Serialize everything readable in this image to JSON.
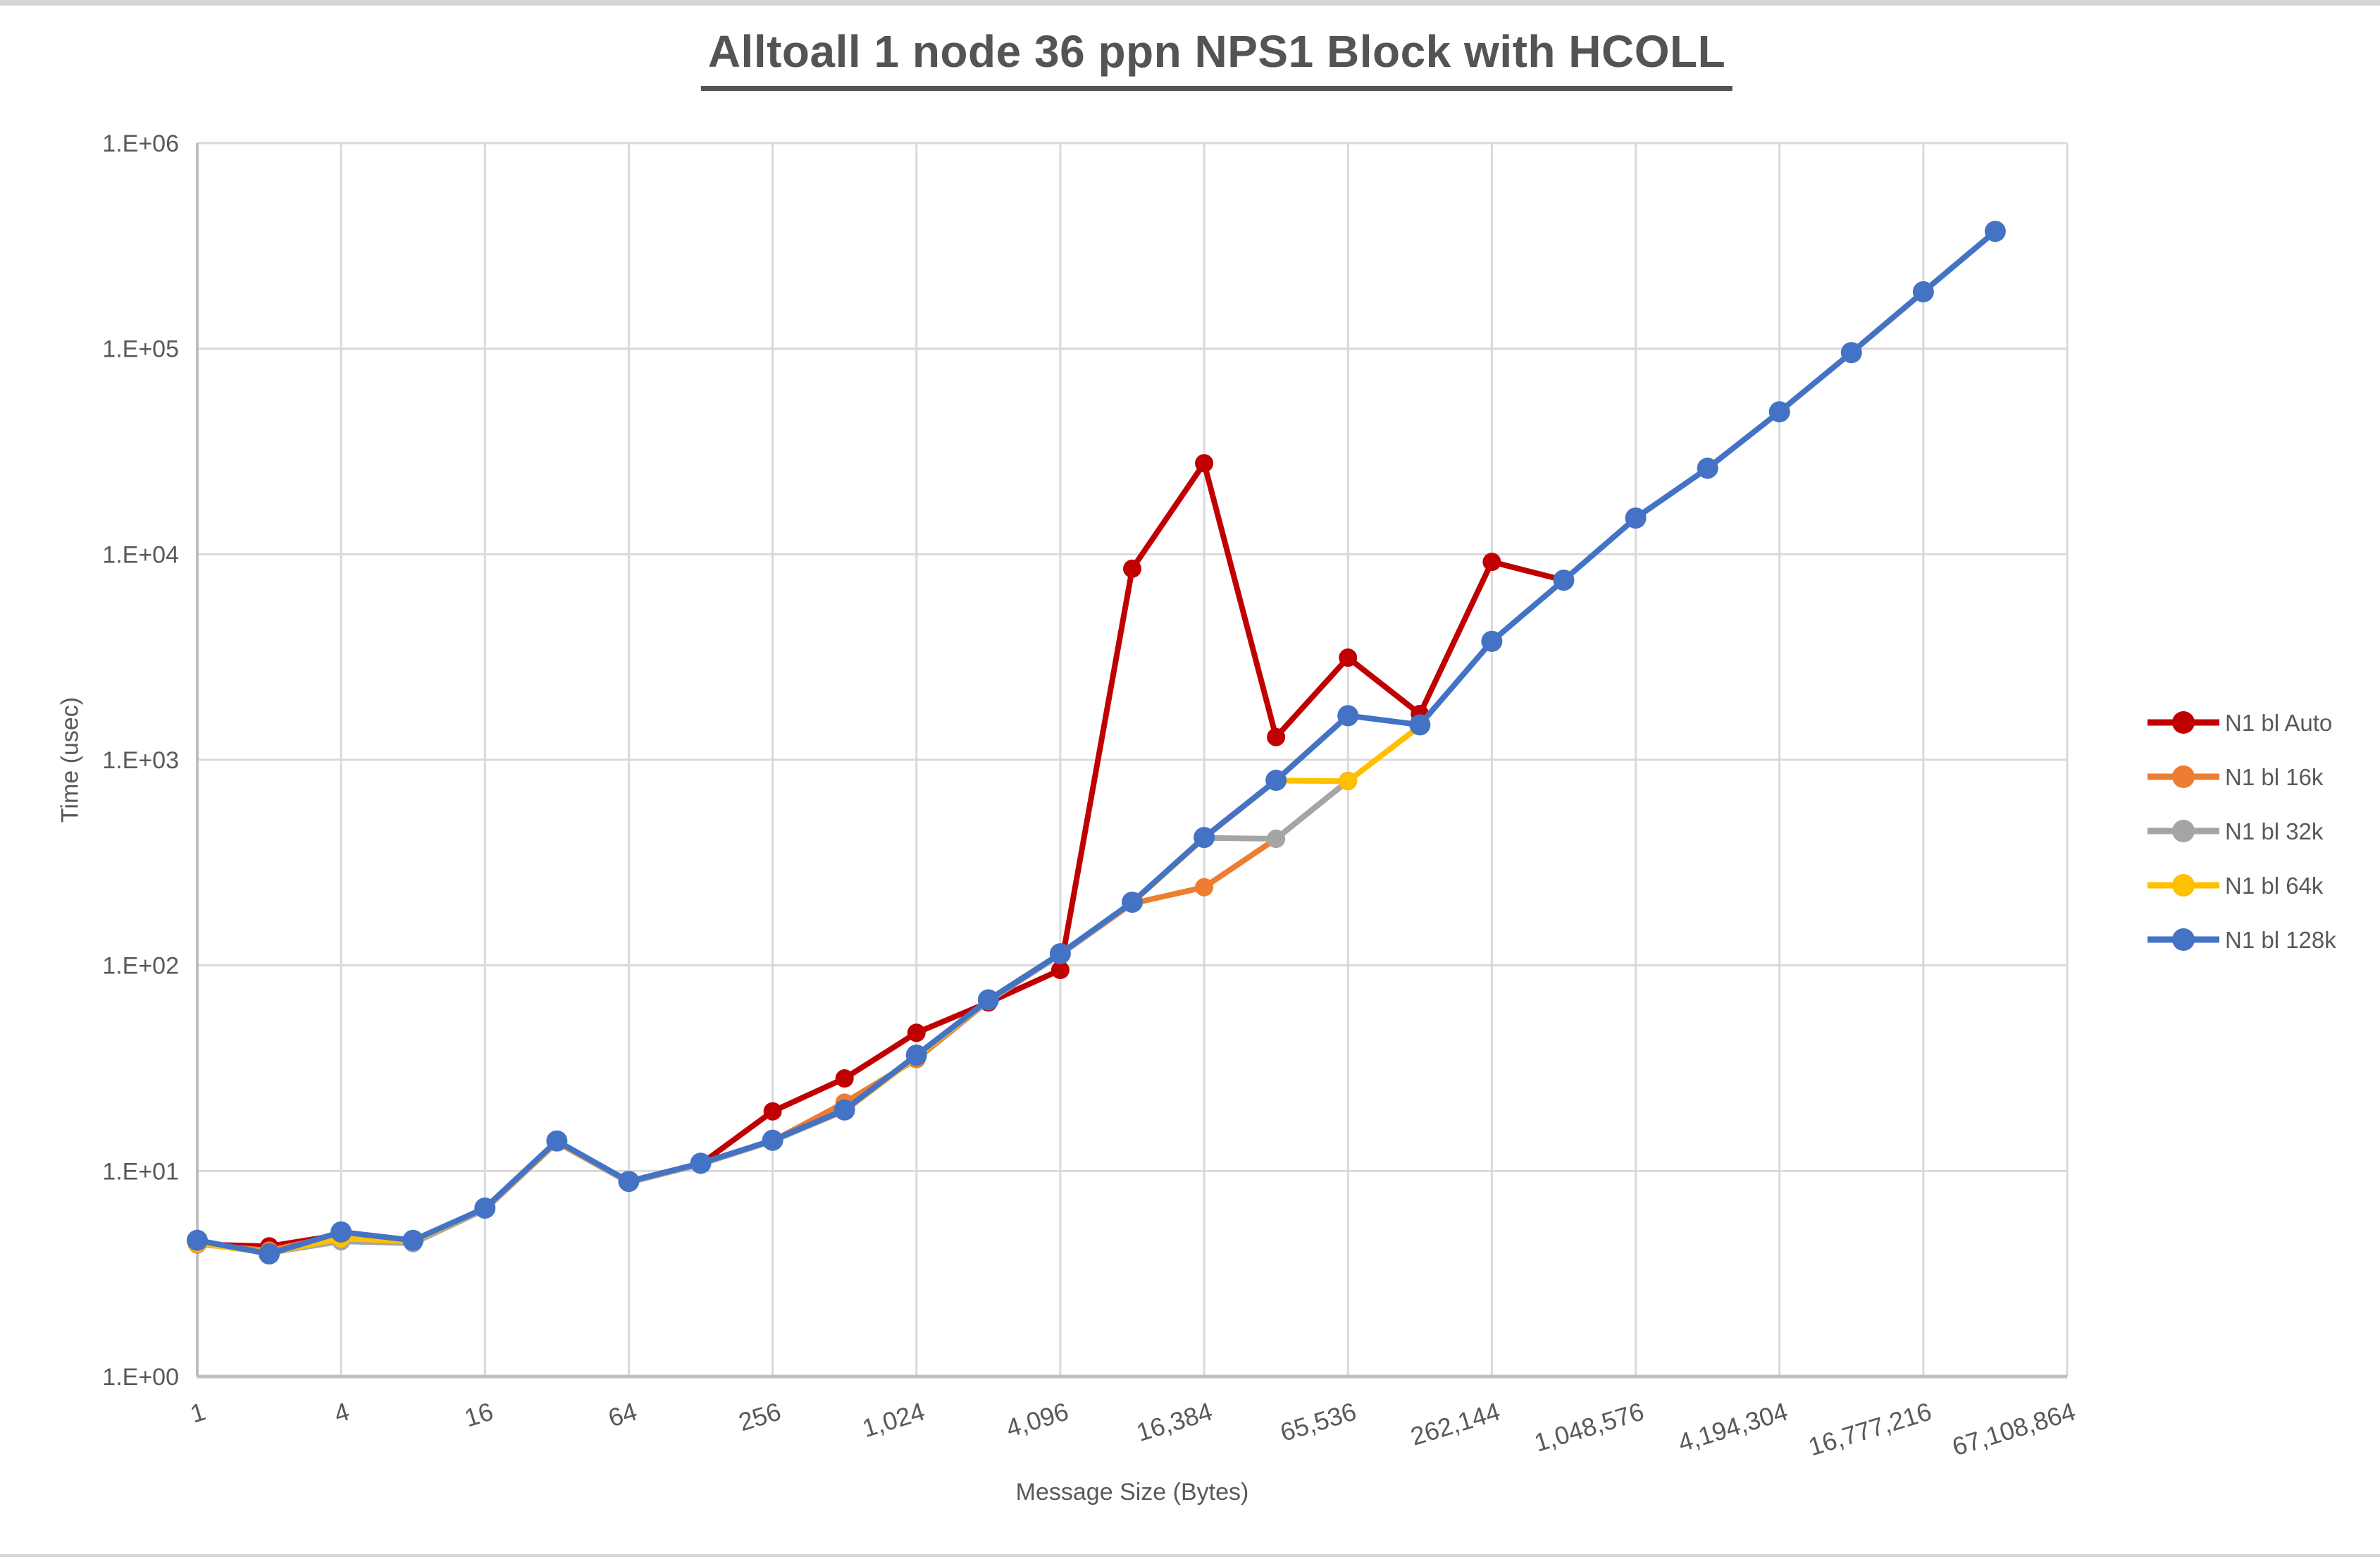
{
  "title": "Alltoall 1 node 36 ppn NPS1 Block with HCOLL",
  "chart_data": {
    "type": "line",
    "title": "Alltoall 1 node 36 ppn NPS1 Block with HCOLL",
    "xlabel": "Message Size (Bytes)",
    "ylabel": "Time (usec)",
    "grid": true,
    "legend_position": "right",
    "x_axis": {
      "scale": "log2-categories",
      "categories": [
        1,
        2,
        4,
        8,
        16,
        32,
        64,
        128,
        256,
        512,
        1024,
        2048,
        4096,
        8192,
        16384,
        32768,
        65536,
        131072,
        262144,
        524288,
        1048576,
        2097152,
        4194304,
        8388608,
        16777216,
        33554432,
        67108864
      ],
      "tick_labels": [
        "1",
        "4",
        "16",
        "64",
        "256",
        "1,024",
        "4,096",
        "16,384",
        "65,536",
        "262,144",
        "1,048,576",
        "4,194,304",
        "16,777,216",
        "67,108,864"
      ]
    },
    "y_axis": {
      "scale": "log10",
      "min": 1,
      "max": 1000000,
      "tick_labels": [
        "1.E+00",
        "1.E+01",
        "1.E+02",
        "1.E+03",
        "1.E+04",
        "1.E+05",
        "1.E+06"
      ]
    },
    "series": [
      {
        "name": "N1 bl Auto",
        "color": "#C00000",
        "values": [
          4.4,
          4.3,
          4.9,
          4.5,
          6.5,
          13.8,
          8.8,
          10.8,
          19.5,
          28.2,
          47,
          66,
          95,
          8500,
          27700,
          1290,
          3140,
          1670,
          9180,
          7480,
          null,
          null,
          null,
          null,
          null,
          null,
          null
        ]
      },
      {
        "name": "N1 bl 16k",
        "color": "#ED7D31",
        "values": [
          4.4,
          4.1,
          4.9,
          4.5,
          6.5,
          13.8,
          8.8,
          10.8,
          14.0,
          21.5,
          35,
          67,
          113,
          200,
          240,
          413,
          790,
          null,
          null,
          null,
          null,
          null,
          null,
          null,
          null,
          null,
          null
        ]
      },
      {
        "name": "N1 bl 32k",
        "color": "#A5A5A5",
        "values": [
          4.5,
          4.0,
          4.55,
          4.45,
          6.5,
          13.9,
          8.8,
          10.8,
          14.0,
          19.6,
          36,
          67,
          113,
          202,
          417,
          413,
          790,
          null,
          null,
          null,
          null,
          null,
          null,
          null,
          null,
          null,
          null
        ]
      },
      {
        "name": "N1 bl 64k",
        "color": "#FFC000",
        "values": [
          4.45,
          4.0,
          4.7,
          4.55,
          6.6,
          13.9,
          8.9,
          10.9,
          14.1,
          19.7,
          36,
          68,
          114,
          202,
          418,
          793,
          787,
          1460,
          null,
          null,
          null,
          null,
          null,
          null,
          null,
          null,
          null
        ]
      },
      {
        "name": "N1 bl 128k",
        "color": "#4472C4",
        "values": [
          4.6,
          3.95,
          5.05,
          4.6,
          6.6,
          14.0,
          8.9,
          10.9,
          14.1,
          19.8,
          36.6,
          68,
          114,
          203,
          419,
          795,
          1640,
          1480,
          3770,
          7480,
          15000,
          26200,
          49300,
          95700,
          189000,
          372000,
          null
        ]
      }
    ]
  },
  "colors": {
    "gridline": "#D9D9D9",
    "axis_line": "#BFBFBF",
    "text": "#595959",
    "title_text": "#545454"
  }
}
